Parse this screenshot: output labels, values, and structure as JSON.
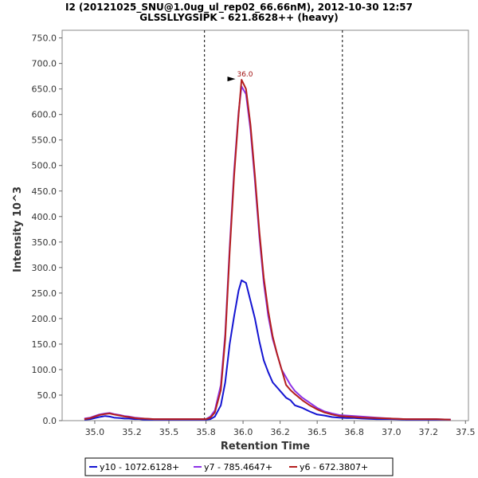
{
  "chart_data": {
    "type": "line",
    "title": "I2 (20121025_SNU@1.0ug_ul_rep02_66.66nM), 2012-10-30 12:57",
    "subtitle": "GLSSLLYGSIPK - 621.8628++ (heavy)",
    "xlabel": "Retention Time",
    "ylabel": "Intensity 10^3",
    "xlim": [
      34.78,
      37.52
    ],
    "ylim": [
      0,
      765
    ],
    "xticks": [
      "35.0",
      "35.2",
      "35.5",
      "35.8",
      "36.0",
      "36.2",
      "36.5",
      "36.8",
      "37.0",
      "37.2",
      "37.5"
    ],
    "xtick_values": [
      35.0,
      35.25,
      35.5,
      35.75,
      36.0,
      36.25,
      36.5,
      36.75,
      37.0,
      37.25,
      37.5
    ],
    "yticks": [
      "0.0",
      "50.0",
      "100.0",
      "150.0",
      "200.0",
      "250.0",
      "300.0",
      "350.0",
      "400.0",
      "450.0",
      "500.0",
      "550.0",
      "600.0",
      "650.0",
      "700.0",
      "750.0"
    ],
    "ytick_values": [
      0,
      50,
      100,
      150,
      200,
      250,
      300,
      350,
      400,
      450,
      500,
      550,
      600,
      650,
      700,
      750
    ],
    "vlines": [
      35.74,
      36.67
    ],
    "peak_annotation": {
      "label": "36.0",
      "x": 35.97,
      "y": 668,
      "color": "#a01010"
    },
    "legend_position": "bottom",
    "series": [
      {
        "name": "y10 - 1072.6128+",
        "color": "#1414d2",
        "x": [
          34.93,
          34.97,
          35.0,
          35.03,
          35.07,
          35.1,
          35.13,
          35.17,
          35.2,
          35.23,
          35.27,
          35.3,
          35.33,
          35.4,
          35.5,
          35.6,
          35.7,
          35.75,
          35.78,
          35.81,
          35.85,
          35.88,
          35.91,
          35.94,
          35.97,
          35.99,
          36.02,
          36.05,
          36.08,
          36.11,
          36.14,
          36.17,
          36.2,
          36.23,
          36.26,
          36.29,
          36.32,
          36.35,
          36.4,
          36.45,
          36.5,
          36.55,
          36.6,
          36.65,
          36.7,
          36.75,
          36.8,
          36.9,
          37.0,
          37.1,
          37.2,
          37.3,
          37.4
        ],
        "values": [
          2,
          3,
          5,
          7,
          9,
          8,
          6,
          5,
          4,
          4,
          3,
          3,
          2,
          2,
          2,
          2,
          2,
          2,
          3,
          8,
          30,
          75,
          150,
          205,
          255,
          275,
          270,
          235,
          200,
          155,
          118,
          95,
          75,
          65,
          55,
          45,
          40,
          30,
          25,
          18,
          12,
          10,
          7,
          6,
          5,
          5,
          4,
          3,
          3,
          2,
          2,
          2,
          2
        ]
      },
      {
        "name": "y7 - 785.4647+",
        "color": "#8c32e6",
        "x": [
          34.93,
          34.97,
          35.0,
          35.03,
          35.07,
          35.1,
          35.13,
          35.17,
          35.2,
          35.23,
          35.27,
          35.3,
          35.33,
          35.4,
          35.5,
          35.6,
          35.7,
          35.75,
          35.78,
          35.81,
          35.85,
          35.88,
          35.91,
          35.94,
          35.97,
          35.99,
          36.02,
          36.05,
          36.08,
          36.11,
          36.14,
          36.17,
          36.2,
          36.23,
          36.26,
          36.29,
          36.32,
          36.35,
          36.4,
          36.45,
          36.5,
          36.55,
          36.6,
          36.65,
          36.7,
          36.75,
          36.8,
          36.9,
          37.0,
          37.1,
          37.2,
          37.3,
          37.4
        ],
        "values": [
          4,
          6,
          9,
          12,
          14,
          15,
          13,
          11,
          9,
          8,
          6,
          5,
          4,
          3,
          3,
          3,
          3,
          3,
          8,
          20,
          70,
          170,
          340,
          490,
          605,
          655,
          640,
          570,
          470,
          360,
          270,
          205,
          160,
          130,
          100,
          85,
          70,
          58,
          45,
          35,
          25,
          18,
          14,
          11,
          10,
          9,
          8,
          6,
          4,
          3,
          3,
          3,
          2
        ]
      },
      {
        "name": "y6 - 672.3807+",
        "color": "#b41e1e",
        "x": [
          34.93,
          34.97,
          35.0,
          35.03,
          35.07,
          35.1,
          35.13,
          35.17,
          35.2,
          35.23,
          35.27,
          35.3,
          35.33,
          35.4,
          35.5,
          35.6,
          35.7,
          35.75,
          35.78,
          35.81,
          35.85,
          35.88,
          35.91,
          35.94,
          35.97,
          35.99,
          36.02,
          36.05,
          36.08,
          36.11,
          36.14,
          36.17,
          36.2,
          36.23,
          36.26,
          36.29,
          36.32,
          36.35,
          36.4,
          36.45,
          36.5,
          36.55,
          36.6,
          36.65,
          36.7,
          36.75,
          36.8,
          36.9,
          37.0,
          37.1,
          37.2,
          37.3,
          37.4
        ],
        "values": [
          3,
          5,
          8,
          11,
          13,
          14,
          12,
          10,
          8,
          7,
          5,
          4,
          4,
          3,
          3,
          3,
          3,
          3,
          6,
          16,
          60,
          160,
          330,
          480,
          600,
          668,
          650,
          580,
          480,
          370,
          280,
          215,
          165,
          130,
          100,
          70,
          60,
          52,
          40,
          30,
          22,
          16,
          12,
          9,
          8,
          7,
          6,
          5,
          4,
          3,
          3,
          3,
          2
        ]
      }
    ]
  }
}
